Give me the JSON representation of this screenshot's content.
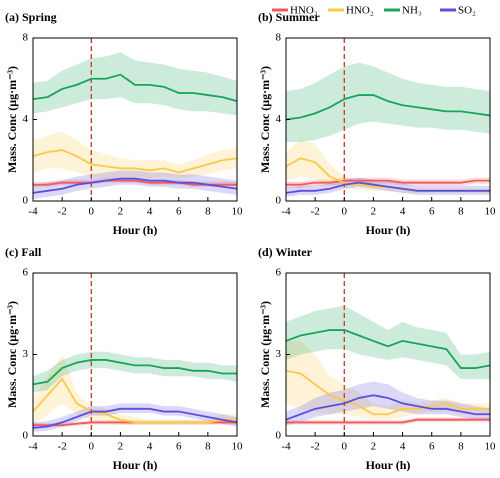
{
  "chart_data": [
    {
      "type": "line",
      "title": "(a) Spring",
      "xlabel": "Hour (h)",
      "ylabel": "Mass. Conc (μg·m⁻³)",
      "legend": "top-right",
      "x": [
        -4,
        -3,
        -2,
        -1,
        0,
        1,
        2,
        3,
        4,
        5,
        6,
        7,
        8,
        9,
        10
      ],
      "xlim": [
        -4,
        10
      ],
      "xticks": [
        -4,
        -2,
        0,
        2,
        4,
        6,
        8,
        10
      ],
      "ylim": [
        0,
        8
      ],
      "yticks": [
        0,
        4,
        8
      ],
      "reference_x": 0,
      "reference_color": "#c0392b",
      "series": [
        {
          "name": "HNO₃",
          "color": "#f05a5a",
          "values": [
            0.8,
            0.8,
            0.9,
            0.9,
            0.9,
            1.0,
            1.0,
            1.0,
            0.9,
            0.9,
            0.9,
            0.8,
            0.8,
            0.8,
            0.8
          ],
          "lower": [
            0.7,
            0.7,
            0.8,
            0.8,
            0.8,
            0.9,
            0.9,
            0.9,
            0.8,
            0.8,
            0.8,
            0.7,
            0.7,
            0.7,
            0.7
          ],
          "upper": [
            0.95,
            0.95,
            1.05,
            1.05,
            1.05,
            1.15,
            1.15,
            1.15,
            1.05,
            1.05,
            1.05,
            0.95,
            0.95,
            0.95,
            0.95
          ]
        },
        {
          "name": "HNO₂",
          "color": "#fbc94a",
          "values": [
            2.2,
            2.4,
            2.5,
            2.2,
            1.8,
            1.7,
            1.6,
            1.6,
            1.5,
            1.6,
            1.4,
            1.6,
            1.8,
            2.0,
            2.1
          ],
          "lower": [
            1.4,
            1.6,
            1.6,
            1.4,
            1.2,
            1.1,
            1.1,
            1.1,
            1.1,
            1.2,
            1.1,
            1.2,
            1.3,
            1.5,
            1.6
          ],
          "upper": [
            3.0,
            3.2,
            3.4,
            3.0,
            2.5,
            2.3,
            2.1,
            2.0,
            2.0,
            2.0,
            1.8,
            2.0,
            2.3,
            2.5,
            2.6
          ]
        },
        {
          "name": "NH₃",
          "color": "#1aa35a",
          "values": [
            5.0,
            5.1,
            5.5,
            5.7,
            6.0,
            6.0,
            6.2,
            5.7,
            5.7,
            5.6,
            5.3,
            5.3,
            5.2,
            5.1,
            4.9
          ],
          "lower": [
            4.3,
            4.4,
            4.6,
            4.8,
            5.0,
            5.0,
            5.1,
            4.8,
            4.8,
            4.7,
            4.5,
            4.4,
            4.4,
            4.3,
            4.2
          ],
          "upper": [
            5.8,
            5.9,
            6.4,
            6.7,
            7.0,
            7.1,
            7.3,
            6.9,
            6.8,
            6.7,
            6.5,
            6.4,
            6.3,
            6.1,
            5.9
          ]
        },
        {
          "name": "SO₂",
          "color": "#5b4fe0",
          "values": [
            0.4,
            0.5,
            0.6,
            0.8,
            0.9,
            1.0,
            1.1,
            1.1,
            1.0,
            1.0,
            0.9,
            0.9,
            0.8,
            0.7,
            0.6
          ],
          "lower": [
            0.1,
            0.2,
            0.3,
            0.5,
            0.6,
            0.7,
            0.8,
            0.8,
            0.7,
            0.7,
            0.6,
            0.6,
            0.5,
            0.4,
            0.3
          ],
          "upper": [
            0.8,
            0.9,
            1.0,
            1.2,
            1.3,
            1.4,
            1.5,
            1.5,
            1.4,
            1.4,
            1.3,
            1.3,
            1.2,
            1.1,
            1.0
          ]
        }
      ]
    },
    {
      "type": "line",
      "title": "(b) Summer",
      "xlabel": "Hour (h)",
      "ylabel": "Mass. Conc (μg·m⁻³)",
      "x": [
        -4,
        -3,
        -2,
        -1,
        0,
        1,
        2,
        3,
        4,
        5,
        6,
        7,
        8,
        9,
        10
      ],
      "xlim": [
        -4,
        10
      ],
      "xticks": [
        -4,
        -2,
        0,
        2,
        4,
        6,
        8,
        10
      ],
      "ylim": [
        0,
        8
      ],
      "yticks": [
        0,
        4,
        8
      ],
      "reference_x": 0,
      "reference_color": "#c0392b",
      "series": [
        {
          "name": "HNO₃",
          "color": "#f05a5a",
          "values": [
            0.8,
            0.8,
            0.9,
            0.9,
            1.0,
            1.0,
            1.0,
            1.0,
            0.9,
            0.9,
            0.9,
            0.9,
            0.9,
            1.0,
            1.0
          ],
          "lower": [
            0.65,
            0.65,
            0.75,
            0.75,
            0.85,
            0.85,
            0.85,
            0.85,
            0.75,
            0.75,
            0.75,
            0.75,
            0.75,
            0.85,
            0.85
          ],
          "upper": [
            0.95,
            0.95,
            1.05,
            1.05,
            1.15,
            1.15,
            1.15,
            1.15,
            1.05,
            1.05,
            1.05,
            1.05,
            1.05,
            1.15,
            1.15
          ]
        },
        {
          "name": "HNO₂",
          "color": "#fbc94a",
          "values": [
            1.7,
            2.1,
            1.9,
            1.2,
            0.9,
            0.8,
            0.7,
            0.7,
            0.6,
            0.5,
            0.5,
            0.5,
            0.5,
            0.5,
            0.5
          ],
          "lower": [
            1.0,
            1.2,
            1.1,
            0.8,
            0.6,
            0.6,
            0.5,
            0.5,
            0.4,
            0.4,
            0.4,
            0.4,
            0.4,
            0.4,
            0.4
          ],
          "upper": [
            2.4,
            3.0,
            2.8,
            1.8,
            1.2,
            1.0,
            0.9,
            0.8,
            0.7,
            0.6,
            0.6,
            0.6,
            0.6,
            0.6,
            0.6
          ]
        },
        {
          "name": "NH₃",
          "color": "#1aa35a",
          "values": [
            4.0,
            4.1,
            4.3,
            4.6,
            5.0,
            5.2,
            5.2,
            4.9,
            4.7,
            4.6,
            4.5,
            4.4,
            4.4,
            4.3,
            4.2
          ],
          "lower": [
            2.9,
            2.9,
            3.0,
            3.2,
            3.5,
            3.8,
            3.9,
            3.8,
            3.7,
            3.6,
            3.6,
            3.5,
            3.5,
            3.4,
            3.3
          ],
          "upper": [
            5.4,
            5.5,
            5.8,
            6.2,
            6.6,
            6.8,
            6.6,
            6.3,
            6.0,
            5.8,
            5.7,
            5.6,
            5.6,
            5.5,
            5.4
          ]
        },
        {
          "name": "SO₂",
          "color": "#5b4fe0",
          "values": [
            0.4,
            0.5,
            0.5,
            0.6,
            0.8,
            0.9,
            0.8,
            0.7,
            0.6,
            0.5,
            0.5,
            0.5,
            0.5,
            0.5,
            0.5
          ],
          "lower": [
            0.2,
            0.3,
            0.3,
            0.4,
            0.6,
            0.7,
            0.6,
            0.5,
            0.4,
            0.3,
            0.3,
            0.3,
            0.3,
            0.3,
            0.3
          ],
          "upper": [
            0.65,
            0.75,
            0.75,
            0.85,
            1.05,
            1.15,
            1.05,
            0.95,
            0.85,
            0.75,
            0.75,
            0.75,
            0.75,
            0.75,
            0.75
          ]
        }
      ]
    },
    {
      "type": "line",
      "title": "(c) Fall",
      "xlabel": "Hour (h)",
      "ylabel": "Mass. Conc (μg·m⁻³)",
      "x": [
        -4,
        -3,
        -2,
        -1,
        0,
        1,
        2,
        3,
        4,
        5,
        6,
        7,
        8,
        9,
        10
      ],
      "xlim": [
        -4,
        10
      ],
      "xticks": [
        -4,
        -2,
        0,
        2,
        4,
        6,
        8,
        10
      ],
      "ylim": [
        0,
        6
      ],
      "yticks": [
        0,
        3,
        6
      ],
      "reference_x": 0,
      "reference_color": "#c0392b",
      "series": [
        {
          "name": "HNO₃",
          "color": "#f05a5a",
          "values": [
            0.4,
            0.4,
            0.4,
            0.45,
            0.5,
            0.5,
            0.5,
            0.5,
            0.5,
            0.5,
            0.5,
            0.5,
            0.5,
            0.5,
            0.5
          ],
          "lower": [
            0.32,
            0.32,
            0.32,
            0.37,
            0.42,
            0.42,
            0.42,
            0.42,
            0.42,
            0.42,
            0.42,
            0.42,
            0.42,
            0.42,
            0.42
          ],
          "upper": [
            0.48,
            0.48,
            0.48,
            0.53,
            0.58,
            0.58,
            0.58,
            0.58,
            0.58,
            0.58,
            0.58,
            0.58,
            0.58,
            0.58,
            0.58
          ]
        },
        {
          "name": "HNO₂",
          "color": "#fbc94a",
          "values": [
            0.9,
            1.5,
            2.1,
            1.2,
            0.9,
            0.8,
            0.6,
            0.5,
            0.5,
            0.5,
            0.5,
            0.5,
            0.5,
            0.6,
            0.6
          ],
          "lower": [
            0.4,
            0.8,
            1.2,
            0.8,
            0.6,
            0.5,
            0.4,
            0.4,
            0.4,
            0.4,
            0.4,
            0.4,
            0.4,
            0.5,
            0.5
          ],
          "upper": [
            1.4,
            2.2,
            3.0,
            1.6,
            1.1,
            1.0,
            0.8,
            0.7,
            0.6,
            0.6,
            0.6,
            0.6,
            0.6,
            0.8,
            0.8
          ]
        },
        {
          "name": "NH₃",
          "color": "#1aa35a",
          "values": [
            1.9,
            2.0,
            2.5,
            2.7,
            2.8,
            2.8,
            2.7,
            2.6,
            2.6,
            2.5,
            2.5,
            2.4,
            2.4,
            2.3,
            2.3
          ],
          "lower": [
            1.6,
            1.7,
            2.2,
            2.4,
            2.5,
            2.5,
            2.4,
            2.3,
            2.3,
            2.2,
            2.2,
            2.2,
            2.1,
            2.1,
            2.0
          ],
          "upper": [
            2.2,
            2.4,
            2.8,
            3.0,
            3.1,
            3.1,
            3.0,
            2.9,
            2.9,
            2.8,
            2.8,
            2.7,
            2.7,
            2.6,
            2.6
          ]
        },
        {
          "name": "SO₂",
          "color": "#5b4fe0",
          "values": [
            0.3,
            0.35,
            0.5,
            0.7,
            0.9,
            0.9,
            1.0,
            1.0,
            1.0,
            0.9,
            0.9,
            0.8,
            0.7,
            0.6,
            0.5
          ],
          "lower": [
            0.15,
            0.2,
            0.35,
            0.55,
            0.75,
            0.75,
            0.85,
            0.85,
            0.85,
            0.75,
            0.75,
            0.65,
            0.55,
            0.45,
            0.35
          ],
          "upper": [
            0.5,
            0.55,
            0.7,
            0.9,
            1.1,
            1.1,
            1.2,
            1.2,
            1.2,
            1.1,
            1.1,
            1.0,
            0.9,
            0.8,
            0.7
          ]
        }
      ]
    },
    {
      "type": "line",
      "title": "(d) Winter",
      "xlabel": "Hour (h)",
      "ylabel": "Mass. Conc (μg·m⁻³)",
      "x": [
        -4,
        -3,
        -2,
        -1,
        0,
        1,
        2,
        3,
        4,
        5,
        6,
        7,
        8,
        9,
        10
      ],
      "xlim": [
        -4,
        10
      ],
      "xticks": [
        -4,
        -2,
        0,
        2,
        4,
        6,
        8,
        10
      ],
      "ylim": [
        0,
        6
      ],
      "yticks": [
        0,
        3,
        6
      ],
      "reference_x": 0,
      "reference_color": "#c0392b",
      "series": [
        {
          "name": "HNO₃",
          "color": "#f05a5a",
          "values": [
            0.5,
            0.5,
            0.5,
            0.5,
            0.5,
            0.5,
            0.5,
            0.5,
            0.5,
            0.6,
            0.6,
            0.6,
            0.6,
            0.6,
            0.6
          ],
          "lower": [
            0.42,
            0.42,
            0.42,
            0.42,
            0.42,
            0.42,
            0.42,
            0.42,
            0.42,
            0.52,
            0.52,
            0.52,
            0.52,
            0.52,
            0.52
          ],
          "upper": [
            0.58,
            0.58,
            0.58,
            0.58,
            0.58,
            0.58,
            0.58,
            0.58,
            0.58,
            0.68,
            0.68,
            0.68,
            0.68,
            0.68,
            0.68
          ]
        },
        {
          "name": "HNO₂",
          "color": "#fbc94a",
          "values": [
            2.4,
            2.3,
            1.9,
            1.5,
            1.3,
            1.1,
            0.8,
            0.8,
            1.0,
            1.0,
            1.1,
            1.2,
            1.0,
            1.0,
            1.0
          ],
          "lower": [
            1.2,
            1.0,
            0.9,
            0.8,
            0.8,
            0.7,
            0.6,
            0.6,
            0.7,
            0.8,
            0.9,
            0.9,
            0.8,
            0.8,
            0.8
          ],
          "upper": [
            3.5,
            3.5,
            3.0,
            2.2,
            1.9,
            1.6,
            1.2,
            1.1,
            1.3,
            1.2,
            1.3,
            1.4,
            1.2,
            1.2,
            1.2
          ]
        },
        {
          "name": "NH₃",
          "color": "#1aa35a",
          "values": [
            3.5,
            3.7,
            3.8,
            3.9,
            3.9,
            3.7,
            3.5,
            3.3,
            3.5,
            3.4,
            3.3,
            3.2,
            2.5,
            2.5,
            2.6
          ],
          "lower": [
            2.8,
            3.0,
            3.1,
            3.2,
            3.2,
            3.0,
            2.9,
            2.8,
            2.9,
            2.8,
            2.7,
            2.6,
            2.1,
            2.1,
            2.1
          ],
          "upper": [
            4.2,
            4.4,
            4.6,
            4.7,
            4.8,
            4.5,
            4.2,
            3.9,
            4.2,
            4.0,
            3.9,
            3.8,
            3.0,
            3.0,
            3.1
          ]
        },
        {
          "name": "SO₂",
          "color": "#5b4fe0",
          "values": [
            0.6,
            0.8,
            1.0,
            1.1,
            1.2,
            1.4,
            1.5,
            1.4,
            1.2,
            1.1,
            1.0,
            1.0,
            0.9,
            0.8,
            0.8
          ],
          "lower": [
            0.4,
            0.5,
            0.7,
            0.8,
            0.9,
            1.0,
            1.1,
            1.0,
            0.9,
            0.8,
            0.8,
            0.8,
            0.7,
            0.6,
            0.6
          ],
          "upper": [
            0.9,
            1.1,
            1.4,
            1.6,
            1.7,
            1.9,
            2.0,
            1.9,
            1.6,
            1.4,
            1.3,
            1.3,
            1.2,
            1.1,
            1.0
          ]
        }
      ]
    }
  ]
}
